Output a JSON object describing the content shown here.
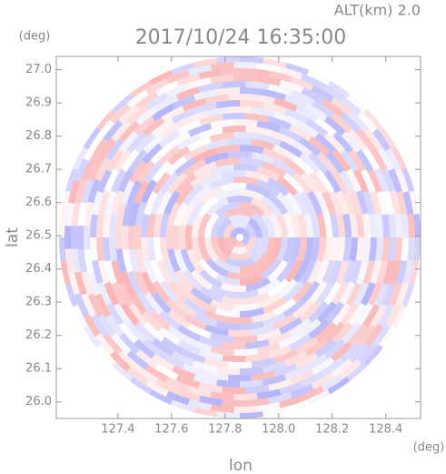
{
  "chart_data": {
    "type": "image",
    "title": "2017/10/24 16:35:00",
    "subtitle": "ALT(km) 2.0",
    "x_label": "lon",
    "x_unit": "(deg)",
    "y_label": "lat",
    "y_unit": "(deg)",
    "xlim": [
      127.17,
      128.53
    ],
    "xticks": [
      127.4,
      127.6,
      127.8,
      {
        "value": 128,
        "label": "128.0"
      },
      128.2,
      128.4
    ],
    "ylim": [
      25.95,
      27.04
    ],
    "yticks": [
      {
        "value": 26,
        "label": "26.0"
      },
      26.1,
      26.2,
      26.3,
      26.4,
      26.5,
      26.6,
      26.7,
      26.8,
      26.9,
      {
        "value": 27,
        "label": "27.0"
      }
    ]
  }
}
